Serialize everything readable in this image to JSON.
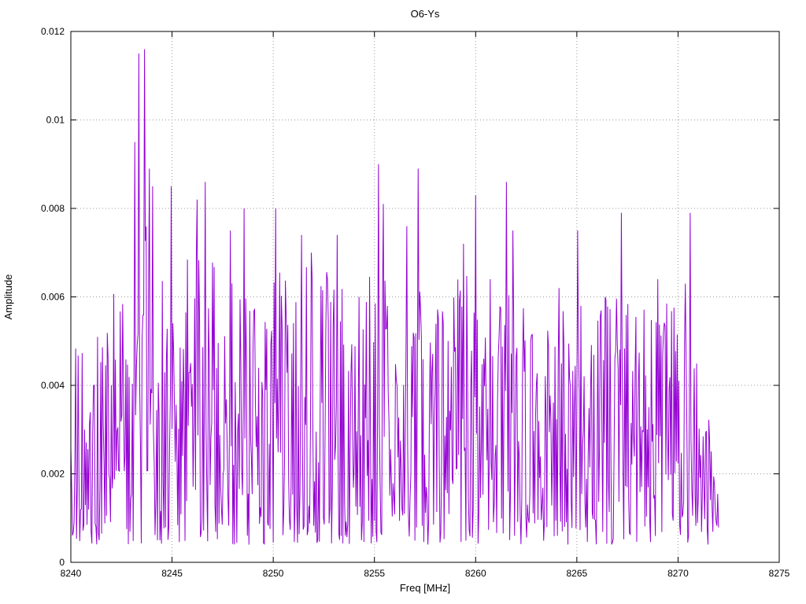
{
  "chart": {
    "title": "O6-Ys",
    "xlabel": "Freq [MHz]",
    "ylabel": "Amplitude"
  },
  "chart_data": {
    "type": "line",
    "title": "O6-Ys",
    "xlabel": "Freq [MHz]",
    "ylabel": "Amplitude",
    "xlim": [
      8240,
      8275
    ],
    "ylim": [
      0,
      0.012
    ],
    "xticks": [
      8240,
      8245,
      8250,
      8255,
      8260,
      8265,
      8270,
      8275
    ],
    "yticks": [
      0,
      0.002,
      0.004,
      0.006,
      0.008,
      0.01,
      0.012
    ],
    "ytick_labels": [
      "0",
      "0.002",
      "0.004",
      "0.006",
      "0.008",
      "0.01",
      "0.012"
    ],
    "grid": true,
    "legend": "none",
    "line_color": "#9400d3",
    "x_start": 8240,
    "x_end": 8272,
    "x_step": 0.04,
    "noise_floor": 0.0004,
    "seed": 1234567,
    "envelope": [
      [
        8240,
        0.005
      ],
      [
        8241,
        0.0056
      ],
      [
        8242,
        0.0062
      ],
      [
        8242.8,
        0.0068
      ],
      [
        8243.5,
        0.0078
      ],
      [
        8244.2,
        0.0072
      ],
      [
        8245,
        0.0062
      ],
      [
        8246,
        0.0072
      ],
      [
        8246.8,
        0.0074
      ],
      [
        8247.5,
        0.0068
      ],
      [
        8248.5,
        0.0066
      ],
      [
        8249.5,
        0.006
      ],
      [
        8250.2,
        0.0066
      ],
      [
        8251,
        0.0064
      ],
      [
        8251.8,
        0.007
      ],
      [
        8252.5,
        0.0066
      ],
      [
        8253.2,
        0.007
      ],
      [
        8254,
        0.006
      ],
      [
        8255,
        0.0068
      ],
      [
        8256,
        0.0066
      ],
      [
        8257,
        0.007
      ],
      [
        8258,
        0.006
      ],
      [
        8259,
        0.0064
      ],
      [
        8260,
        0.0068
      ],
      [
        8261,
        0.0064
      ],
      [
        8262,
        0.006
      ],
      [
        8263,
        0.0054
      ],
      [
        8264,
        0.006
      ],
      [
        8265,
        0.0058
      ],
      [
        8266,
        0.006
      ],
      [
        8267,
        0.0062
      ],
      [
        8268,
        0.0056
      ],
      [
        8269,
        0.0062
      ],
      [
        8270,
        0.006
      ],
      [
        8270.7,
        0.005
      ],
      [
        8271.2,
        0.004
      ],
      [
        8271.6,
        0.0032
      ],
      [
        8272,
        0.002
      ]
    ],
    "peaks": [
      [
        8243.15,
        0.0095
      ],
      [
        8243.35,
        0.0115
      ],
      [
        8243.62,
        0.0116
      ],
      [
        8243.9,
        0.0089
      ],
      [
        8244.05,
        0.0085
      ],
      [
        8244.95,
        0.0085
      ],
      [
        8246.25,
        0.0082
      ],
      [
        8246.62,
        0.0086
      ],
      [
        8247.9,
        0.0075
      ],
      [
        8248.55,
        0.008
      ],
      [
        8250.1,
        0.008
      ],
      [
        8251.4,
        0.0074
      ],
      [
        8251.9,
        0.007
      ],
      [
        8253.15,
        0.0074
      ],
      [
        8255.2,
        0.009
      ],
      [
        8255.45,
        0.0081
      ],
      [
        8256.6,
        0.0076
      ],
      [
        8257.15,
        0.0089
      ],
      [
        8259.4,
        0.0072
      ],
      [
        8260.0,
        0.0083
      ],
      [
        8260.7,
        0.0064
      ],
      [
        8261.5,
        0.0086
      ],
      [
        8261.85,
        0.0075
      ],
      [
        8264.1,
        0.0062
      ],
      [
        8265.05,
        0.0075
      ],
      [
        8266.4,
        0.006
      ],
      [
        8267.2,
        0.0079
      ],
      [
        8269.0,
        0.0064
      ],
      [
        8270.35,
        0.0063
      ],
      [
        8270.6,
        0.0079
      ]
    ]
  }
}
